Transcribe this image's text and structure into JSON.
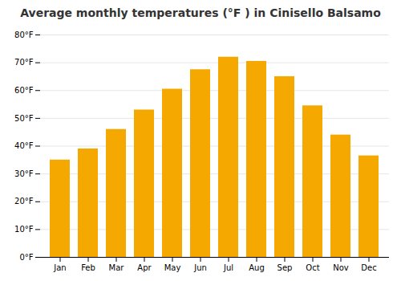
{
  "chart_data": {
    "type": "bar",
    "title": "Average monthly temperatures (°F ) in Cinisello Balsamo",
    "categories": [
      "Jan",
      "Feb",
      "Mar",
      "Apr",
      "May",
      "Jun",
      "Jul",
      "Aug",
      "Sep",
      "Oct",
      "Nov",
      "Dec"
    ],
    "values": [
      35,
      39,
      46,
      53,
      60.5,
      67.5,
      72,
      70.5,
      65,
      54.5,
      44,
      36.5
    ],
    "color": "#F5A800",
    "ylim": [
      0,
      80
    ],
    "yticks": [
      {
        "value": 0,
        "label": "0°F"
      },
      {
        "value": 10,
        "label": "10°F"
      },
      {
        "value": 20,
        "label": "20°F"
      },
      {
        "value": 30,
        "label": "30°F"
      },
      {
        "value": 40,
        "label": "40°F"
      },
      {
        "value": 50,
        "label": "50°F"
      },
      {
        "value": 60,
        "label": "60°F"
      },
      {
        "value": 70,
        "label": "70°F"
      },
      {
        "value": 80,
        "label": "80°F"
      }
    ],
    "grid": true
  }
}
